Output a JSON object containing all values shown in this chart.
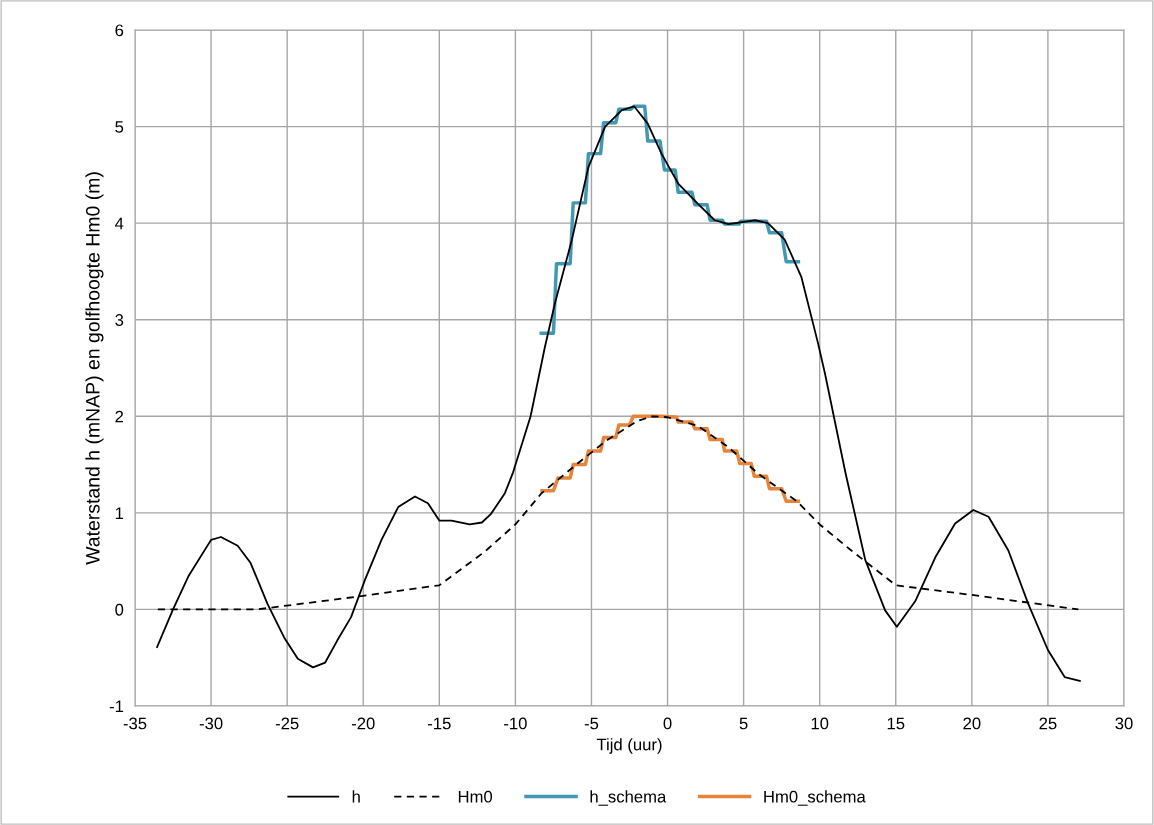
{
  "chart_data": {
    "type": "line",
    "xlabel": "Tijd (uur)",
    "ylabel": "Waterstand h (mNAP) en golfhoogte Hm0 (m)",
    "xlim": [
      -35,
      30
    ],
    "xticks": [
      -35,
      -30,
      -25,
      -20,
      -15,
      -10,
      -5,
      0,
      5,
      10,
      15,
      20,
      25,
      30
    ],
    "ylim": [
      -1,
      6
    ],
    "yticks": [
      -1,
      0,
      1,
      2,
      3,
      4,
      5,
      6
    ],
    "grid": true,
    "legend": "bottom",
    "marker": "none",
    "series": [
      {
        "name": "h",
        "color": "#000000",
        "line_style": "solid",
        "x": [
          -33.55,
          -32.5,
          -31.5,
          -30,
          -29.35,
          -28.25,
          -27.4,
          -26.3,
          -25.2,
          -24.3,
          -23.3,
          -22.5,
          -21.7,
          -20.8,
          -19.9,
          -18.8,
          -17.7,
          -16.6,
          -15.75,
          -15.0,
          -14.2,
          -13.0,
          -12.2,
          -11.6,
          -10.7,
          -10.15,
          -9.0,
          -8.07,
          -7.4,
          -6.3,
          -5.2,
          -4.1,
          -3.0,
          -2.2,
          -1.3,
          -0.4,
          0.7,
          2.0,
          3.1,
          4.0,
          5.75,
          6.6,
          7.7,
          8.8,
          9.9,
          10.35,
          11.7,
          13.0,
          14.3,
          15.07,
          16.3,
          17.6,
          18.9,
          20.1,
          21.1,
          22.4,
          23.7,
          25.0,
          26.1,
          27.1
        ],
        "values": [
          -0.39,
          0,
          0.34,
          0.72,
          0.75,
          0.66,
          0.48,
          0.06,
          -0.29,
          -0.51,
          -0.6,
          -0.55,
          -0.32,
          -0.08,
          0.3,
          0.72,
          1.06,
          1.17,
          1.1,
          0.92,
          0.92,
          0.88,
          0.9,
          0.99,
          1.2,
          1.42,
          2.0,
          2.71,
          3.17,
          3.82,
          4.58,
          5.0,
          5.17,
          5.21,
          5.03,
          4.72,
          4.41,
          4.2,
          4.03,
          3.99,
          4.03,
          4.0,
          3.83,
          3.44,
          2.75,
          2.44,
          1.41,
          0.51,
          -0.01,
          -0.18,
          0.09,
          0.54,
          0.89,
          1.03,
          0.96,
          0.61,
          0.06,
          -0.42,
          -0.7,
          -0.74
        ]
      },
      {
        "name": "Hm0",
        "color": "#000000",
        "line_style": "dashed",
        "x": [
          -33.5,
          -27,
          -20,
          -15,
          -12,
          -10,
          -8.3,
          -6,
          -4,
          -2,
          -1,
          0,
          2,
          4,
          6,
          8.5,
          10,
          12,
          15,
          20,
          27
        ],
        "values": [
          0,
          0,
          0.14,
          0.25,
          0.6,
          0.88,
          1.2,
          1.5,
          1.75,
          1.95,
          2.0,
          1.99,
          1.9,
          1.68,
          1.4,
          1.12,
          0.88,
          0.62,
          0.25,
          0.15,
          0
        ]
      },
      {
        "name": "h_schema",
        "color": "#4198b5",
        "line_style": "solid",
        "x": [
          -8.3,
          -7.5,
          -7.3,
          -6.4,
          -6.2,
          -5.4,
          -5.2,
          -4.4,
          -4.2,
          -3.4,
          -3.2,
          -2.4,
          -2.2,
          -1.5,
          -1.3,
          -0.5,
          -0.2,
          0.5,
          0.7,
          1.6,
          1.8,
          2.6,
          2.8,
          3.6,
          3.75,
          4.7,
          4.8,
          6.5,
          6.7,
          7.5,
          7.8,
          8.6
        ],
        "values": [
          2.86,
          2.86,
          3.58,
          3.58,
          4.21,
          4.21,
          4.72,
          4.72,
          5.04,
          5.04,
          5.18,
          5.18,
          5.21,
          5.21,
          4.85,
          4.85,
          4.55,
          4.55,
          4.32,
          4.32,
          4.19,
          4.19,
          4.03,
          4.03,
          3.99,
          3.99,
          4.02,
          4.02,
          3.9,
          3.9,
          3.6,
          3.6
        ]
      },
      {
        "name": "Hm0_schema",
        "color": "#e6843a",
        "line_style": "solid",
        "x": [
          -8.25,
          -7.5,
          -7.2,
          -6.4,
          -6.2,
          -5.4,
          -5.2,
          -4.4,
          -4.2,
          -3.4,
          -3.2,
          -2.5,
          -2.25,
          -0.4,
          0.6,
          0.7,
          1.6,
          1.8,
          2.6,
          2.8,
          3.6,
          3.75,
          4.55,
          4.75,
          5.5,
          5.7,
          6.5,
          6.7,
          7.5,
          7.8,
          8.6
        ],
        "values": [
          1.23,
          1.23,
          1.36,
          1.36,
          1.5,
          1.5,
          1.64,
          1.64,
          1.78,
          1.78,
          1.91,
          1.91,
          2.0,
          2.0,
          1.99,
          1.94,
          1.94,
          1.87,
          1.87,
          1.76,
          1.76,
          1.64,
          1.64,
          1.51,
          1.51,
          1.38,
          1.38,
          1.25,
          1.25,
          1.12,
          1.12
        ]
      }
    ]
  }
}
